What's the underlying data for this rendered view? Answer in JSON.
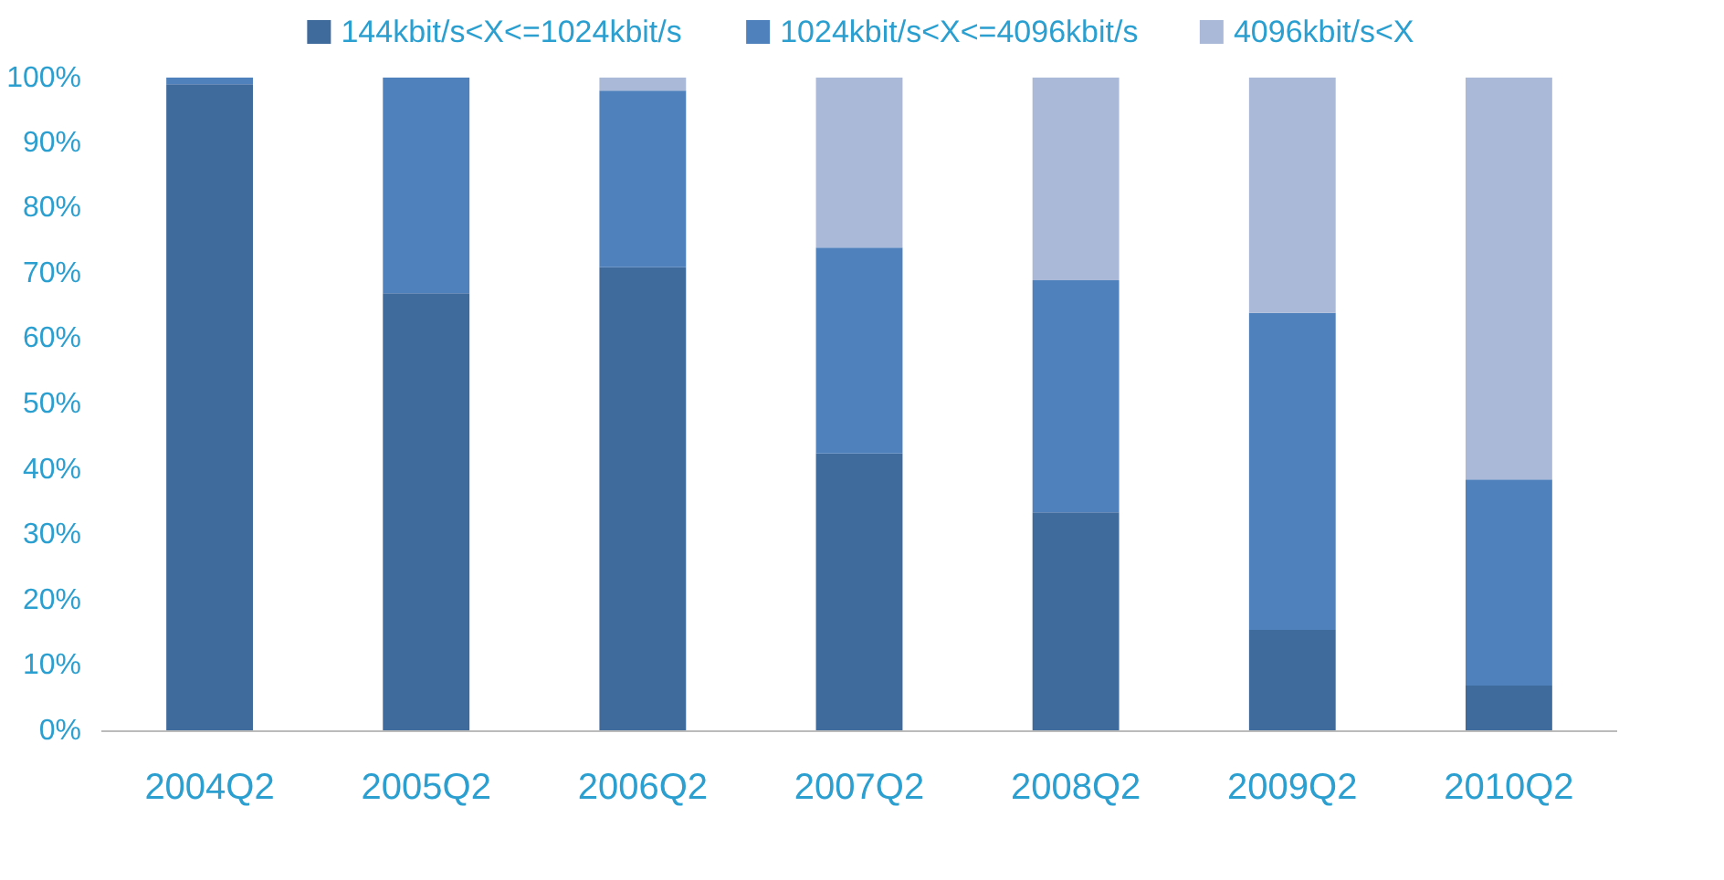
{
  "chart_data": {
    "type": "bar",
    "stacked": true,
    "categories": [
      "2004Q2",
      "2005Q2",
      "2006Q2",
      "2007Q2",
      "2008Q2",
      "2009Q2",
      "2010Q2"
    ],
    "series": [
      {
        "name": "144kbit/s<X<=1024kbit/s",
        "color": "#3f6a9c",
        "values": [
          99,
          67,
          71,
          42.5,
          33.5,
          15.5,
          7
        ]
      },
      {
        "name": "1024kbit/s<X<=4096kbit/s",
        "color": "#4f81bd",
        "values": [
          1,
          33,
          27,
          31.5,
          35.5,
          48.5,
          31.5
        ]
      },
      {
        "name": "4096kbit/s<X",
        "color": "#aab9d7",
        "values": [
          0,
          0,
          2,
          26,
          31,
          36,
          61.5
        ]
      }
    ],
    "ylim": [
      0,
      100
    ],
    "yticks": [
      {
        "value": 0,
        "label": "0%"
      },
      {
        "value": 10,
        "label": "10%"
      },
      {
        "value": 20,
        "label": "20%"
      },
      {
        "value": 30,
        "label": "30%"
      },
      {
        "value": 40,
        "label": "40%"
      },
      {
        "value": 50,
        "label": "50%"
      },
      {
        "value": 60,
        "label": "60%"
      },
      {
        "value": 70,
        "label": "70%"
      },
      {
        "value": 80,
        "label": "80%"
      },
      {
        "value": 90,
        "label": "90%"
      },
      {
        "value": 100,
        "label": "100%"
      }
    ],
    "grid": false,
    "legend": "top"
  }
}
